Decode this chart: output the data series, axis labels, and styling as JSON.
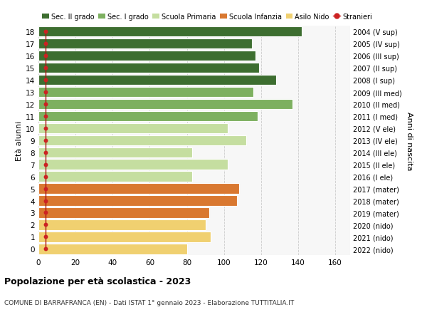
{
  "ages": [
    0,
    1,
    2,
    3,
    4,
    5,
    6,
    7,
    8,
    9,
    10,
    11,
    12,
    13,
    14,
    15,
    16,
    17,
    18
  ],
  "values": [
    80,
    93,
    90,
    92,
    107,
    108,
    83,
    102,
    83,
    112,
    102,
    118,
    137,
    116,
    128,
    119,
    117,
    115,
    142
  ],
  "right_labels": [
    "2022 (nido)",
    "2021 (nido)",
    "2020 (nido)",
    "2019 (mater)",
    "2018 (mater)",
    "2017 (mater)",
    "2016 (I ele)",
    "2015 (II ele)",
    "2014 (III ele)",
    "2013 (IV ele)",
    "2012 (V ele)",
    "2011 (I med)",
    "2010 (II med)",
    "2009 (III med)",
    "2008 (I sup)",
    "2007 (II sup)",
    "2006 (III sup)",
    "2005 (IV sup)",
    "2004 (V sup)"
  ],
  "bar_colors": [
    "#f0d070",
    "#f0d070",
    "#f0d070",
    "#d97830",
    "#d97830",
    "#d97830",
    "#c5dea0",
    "#c5dea0",
    "#c5dea0",
    "#c5dea0",
    "#c5dea0",
    "#7db060",
    "#7db060",
    "#7db060",
    "#3d6e30",
    "#3d6e30",
    "#3d6e30",
    "#3d6e30",
    "#3d6e30"
  ],
  "stranieri_vals": [
    4,
    4,
    4,
    4,
    4,
    4,
    4,
    4,
    4,
    4,
    4,
    4,
    4,
    4,
    4,
    4,
    4,
    4,
    4
  ],
  "legend_labels": [
    "Sec. II grado",
    "Sec. I grado",
    "Scuola Primaria",
    "Scuola Infanzia",
    "Asilo Nido",
    "Stranieri"
  ],
  "legend_colors": [
    "#3d6e30",
    "#7db060",
    "#c5dea0",
    "#d97830",
    "#f0d070",
    "#cc2222"
  ],
  "ylabel": "Età alunni",
  "right_ylabel": "Anni di nascita",
  "title": "Popolazione per età scolastica - 2023",
  "subtitle": "COMUNE DI BARRAFRANCA (EN) - Dati ISTAT 1° gennaio 2023 - Elaborazione TUTTITALIA.IT",
  "xlim": [
    0,
    168
  ],
  "xticks": [
    0,
    20,
    40,
    60,
    80,
    100,
    120,
    140,
    160
  ],
  "background_color": "#f7f7f7",
  "grid_color": "#cccccc"
}
